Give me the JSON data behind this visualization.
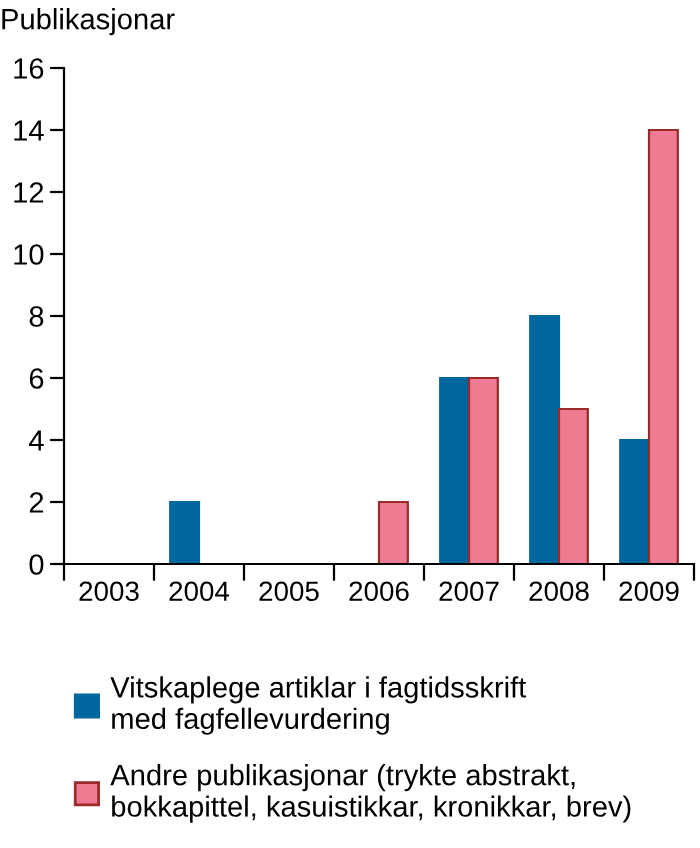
{
  "chart_data": {
    "type": "bar",
    "ylabel": "Publikasjonar",
    "categories": [
      "2003",
      "2004",
      "2005",
      "2006",
      "2007",
      "2008",
      "2009"
    ],
    "series": [
      {
        "name": "Vitskaplege artiklar i fagtidsskrift\nmed fagfellevurdering",
        "color": "#00679e",
        "values": [
          0,
          2,
          0,
          0,
          6,
          8,
          4
        ]
      },
      {
        "name": "Andre publikasjonar (trykte abstrakt,\nbokkapittel, kasuistikkar, kronikkar, brev)",
        "color": "#ef7b93",
        "values": [
          0,
          0,
          0,
          2,
          6,
          5,
          14
        ]
      }
    ],
    "ylim": [
      0,
      16
    ],
    "yticks": [
      0,
      2,
      4,
      6,
      8,
      10,
      12,
      14,
      16
    ],
    "grid": false,
    "legend": "bottom"
  }
}
